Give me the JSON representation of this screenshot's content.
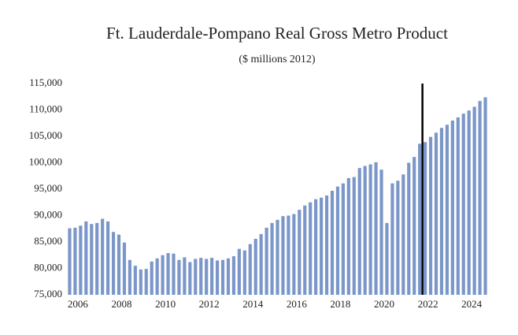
{
  "chart_data": {
    "type": "bar",
    "title": "Ft. Lauderdale-Pompano Real Gross Metro Product",
    "subtitle": "($ millions 2012)",
    "categories": [
      "2006",
      null,
      null,
      null,
      null,
      null,
      null,
      null,
      "2008",
      null,
      null,
      null,
      null,
      null,
      null,
      null,
      "2010",
      null,
      null,
      null,
      null,
      null,
      null,
      null,
      "2012",
      null,
      null,
      null,
      null,
      null,
      null,
      null,
      "2014",
      null,
      null,
      null,
      null,
      null,
      null,
      null,
      "2016",
      null,
      null,
      null,
      null,
      null,
      null,
      null,
      "2018",
      null,
      null,
      null,
      null,
      null,
      null,
      null,
      "2020",
      null,
      null,
      null,
      null,
      null,
      null,
      null,
      "2022",
      null,
      null,
      null,
      null,
      null,
      null,
      null,
      "2024",
      null,
      null,
      null,
      null
    ],
    "values": [
      87600,
      87700,
      88100,
      88900,
      88400,
      88600,
      89400,
      88900,
      86900,
      86400,
      84900,
      81600,
      80500,
      79800,
      79900,
      81300,
      81900,
      82500,
      82900,
      82800,
      81600,
      82100,
      81200,
      81800,
      82000,
      81800,
      82000,
      81500,
      81600,
      81900,
      82300,
      83700,
      83400,
      84600,
      85600,
      86500,
      87700,
      88600,
      89200,
      89900,
      90000,
      90300,
      91100,
      91900,
      92500,
      93100,
      93400,
      93800,
      94700,
      95500,
      96100,
      97100,
      97300,
      99000,
      99400,
      99700,
      100100,
      98700,
      88600,
      96100,
      96600,
      97800,
      100000,
      101100,
      103600,
      103900,
      104900,
      105700,
      106600,
      107200,
      108000,
      108600,
      109300,
      109900,
      110600,
      111700,
      112400
    ],
    "color": "#7b96c8",
    "vertical_line_after_index": 64,
    "ylim": [
      75000,
      115000
    ],
    "yticks": [
      {
        "value": 75000,
        "label": "75,000"
      },
      {
        "value": 80000,
        "label": "80,000"
      },
      {
        "value": 85000,
        "label": "85,000"
      },
      {
        "value": 90000,
        "label": "90,000"
      },
      {
        "value": 95000,
        "label": "95,000"
      },
      {
        "value": 100000,
        "label": "100,000"
      },
      {
        "value": 105000,
        "label": "105,000"
      },
      {
        "value": 110000,
        "label": "110,000"
      },
      {
        "value": 115000,
        "label": "115,000"
      }
    ],
    "grid": false
  }
}
